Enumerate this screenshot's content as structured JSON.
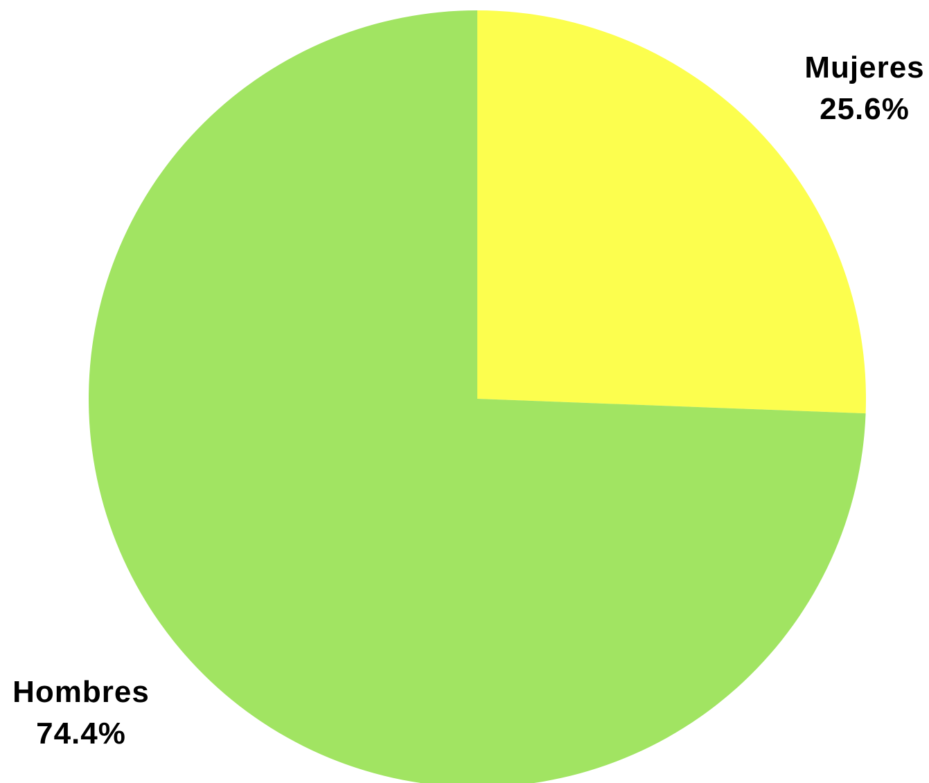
{
  "chart_data": {
    "type": "pie",
    "title": "",
    "categories": [
      "Mujeres",
      "Hombres"
    ],
    "values": [
      25.6,
      74.4
    ],
    "value_labels": [
      "25.6%",
      "74.4%"
    ],
    "colors": [
      "#FCFE4E",
      "#A1E462"
    ],
    "start_angle_deg": 0,
    "direction": "clockwise",
    "legend": "none",
    "label_position": "outside"
  }
}
